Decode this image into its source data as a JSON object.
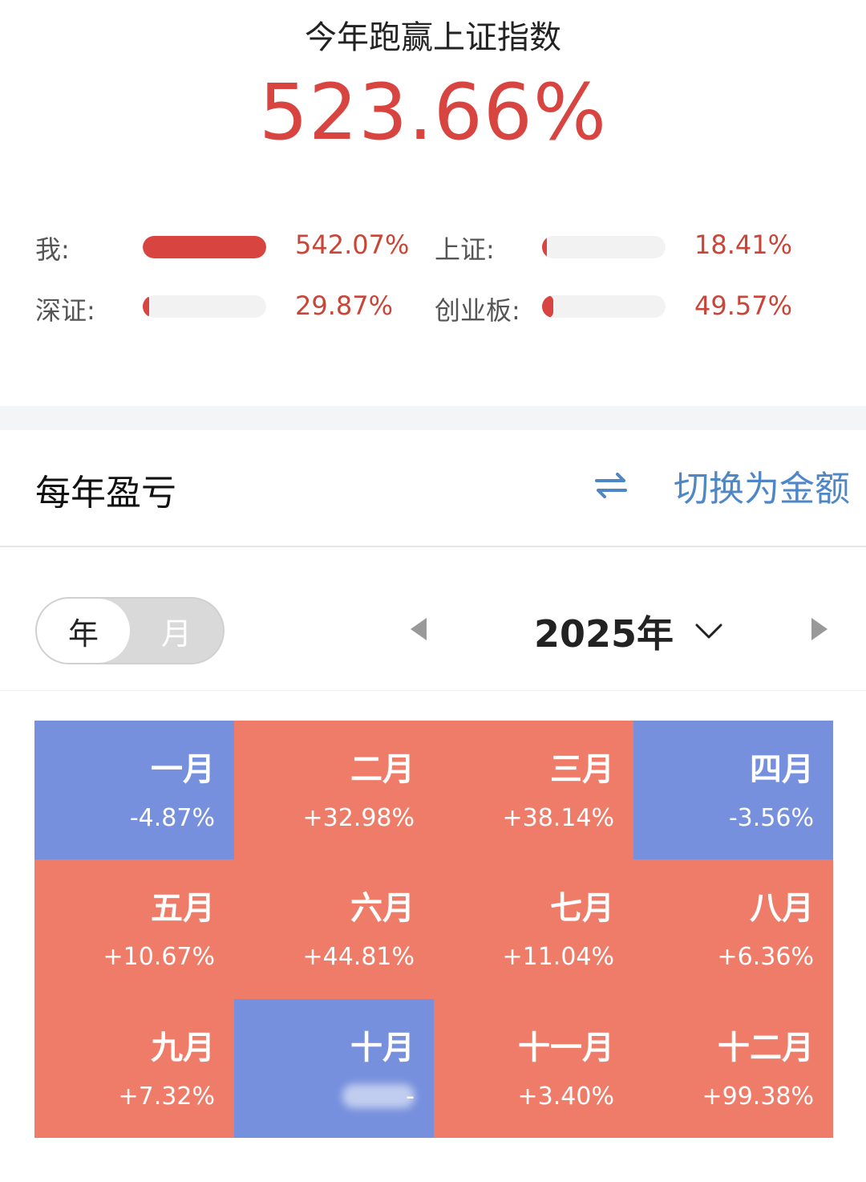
{
  "summary": {
    "headline": "今年跑赢上证指数",
    "value": "523.66%"
  },
  "comparison": [
    {
      "label": "我:",
      "value": "542.07%",
      "fill": 1.0
    },
    {
      "label": "上证:",
      "value": "18.41%",
      "fill": 0.034
    },
    {
      "label": "深证:",
      "value": "29.87%",
      "fill": 0.055
    },
    {
      "label": "创业板:",
      "value": "49.57%",
      "fill": 0.091
    }
  ],
  "section": {
    "title": "每年盈亏",
    "switch_label": "切换为金额",
    "switch_icon": "swap-arrows-icon"
  },
  "period_toggle": {
    "options": [
      "年",
      "月"
    ],
    "selected": "年"
  },
  "year_picker": {
    "label": "2025年",
    "prev_icon": "triangle-left-icon",
    "next_icon": "triangle-right-icon",
    "dropdown_icon": "chevron-down-icon"
  },
  "colors": {
    "gain": "#ee7c68",
    "loss": "#7790dd",
    "accent_red": "#d84440",
    "accent_blue": "#4f86c6"
  },
  "months": [
    {
      "name": "一月",
      "value": "-4.87%",
      "sign": "loss"
    },
    {
      "name": "二月",
      "value": "+32.98%",
      "sign": "gain"
    },
    {
      "name": "三月",
      "value": "+38.14%",
      "sign": "gain"
    },
    {
      "name": "四月",
      "value": "-3.56%",
      "sign": "loss"
    },
    {
      "name": "五月",
      "value": "+10.67%",
      "sign": "gain"
    },
    {
      "name": "六月",
      "value": "+44.81%",
      "sign": "gain"
    },
    {
      "name": "七月",
      "value": "+11.04%",
      "sign": "gain"
    },
    {
      "name": "八月",
      "value": "+6.36%",
      "sign": "gain"
    },
    {
      "name": "九月",
      "value": "+7.32%",
      "sign": "gain"
    },
    {
      "name": "十月",
      "value": "-",
      "sign": "loss",
      "obscured": true
    },
    {
      "name": "十一月",
      "value": "+3.40%",
      "sign": "gain"
    },
    {
      "name": "十二月",
      "value": "+99.38%",
      "sign": "gain"
    }
  ]
}
